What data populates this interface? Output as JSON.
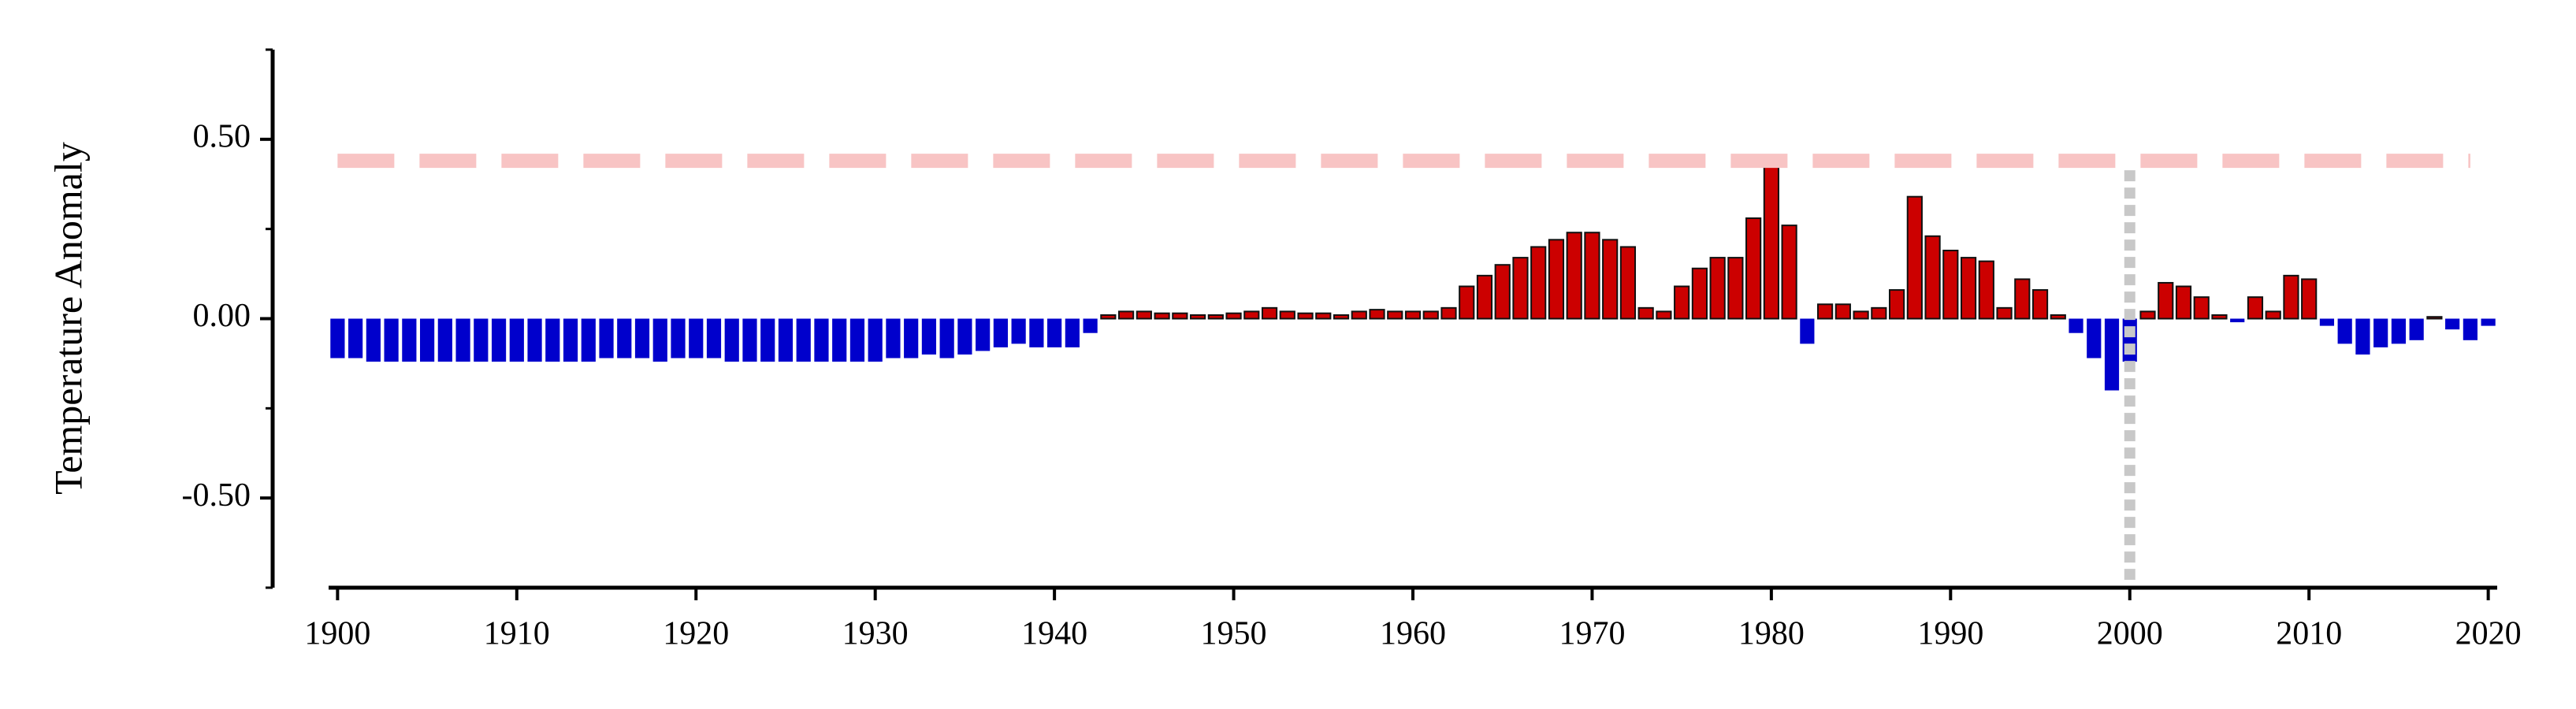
{
  "chart_data": {
    "type": "bar",
    "ylabel": "Temperature Anomaly",
    "x": [
      1900,
      1901,
      1902,
      1903,
      1904,
      1905,
      1906,
      1907,
      1908,
      1909,
      1910,
      1911,
      1912,
      1913,
      1914,
      1915,
      1916,
      1917,
      1918,
      1919,
      1920,
      1921,
      1922,
      1923,
      1924,
      1925,
      1926,
      1927,
      1928,
      1929,
      1930,
      1931,
      1932,
      1933,
      1934,
      1935,
      1936,
      1937,
      1938,
      1939,
      1940,
      1941,
      1942,
      1943,
      1944,
      1945,
      1946,
      1947,
      1948,
      1949,
      1950,
      1951,
      1952,
      1953,
      1954,
      1955,
      1956,
      1957,
      1958,
      1959,
      1960,
      1961,
      1962,
      1963,
      1964,
      1965,
      1966,
      1967,
      1968,
      1969,
      1970,
      1971,
      1972,
      1973,
      1974,
      1975,
      1976,
      1977,
      1978,
      1979,
      1980,
      1981,
      1982,
      1983,
      1984,
      1985,
      1986,
      1987,
      1988,
      1989,
      1990,
      1991,
      1992,
      1993,
      1994,
      1995,
      1996,
      1997,
      1998,
      1999,
      2000,
      2001,
      2002,
      2003,
      2004,
      2005,
      2006,
      2007,
      2008,
      2009,
      2010,
      2011,
      2012,
      2013,
      2014,
      2015,
      2016,
      2017,
      2018,
      2019,
      2020
    ],
    "values": [
      -0.11,
      -0.11,
      -0.12,
      -0.12,
      -0.12,
      -0.12,
      -0.12,
      -0.12,
      -0.12,
      -0.12,
      -0.12,
      -0.12,
      -0.12,
      -0.12,
      -0.12,
      -0.11,
      -0.11,
      -0.11,
      -0.12,
      -0.11,
      -0.11,
      -0.11,
      -0.12,
      -0.12,
      -0.12,
      -0.12,
      -0.12,
      -0.12,
      -0.12,
      -0.12,
      -0.12,
      -0.11,
      -0.11,
      -0.1,
      -0.11,
      -0.1,
      -0.09,
      -0.08,
      -0.07,
      -0.08,
      -0.08,
      -0.08,
      -0.04,
      0.01,
      0.02,
      0.02,
      0.015,
      0.015,
      0.01,
      0.01,
      0.015,
      0.02,
      0.03,
      0.02,
      0.015,
      0.015,
      0.01,
      0.02,
      0.025,
      0.02,
      0.02,
      0.02,
      0.03,
      0.09,
      0.12,
      0.15,
      0.17,
      0.2,
      0.22,
      0.24,
      0.24,
      0.22,
      0.2,
      0.03,
      0.02,
      0.09,
      0.14,
      0.17,
      0.17,
      0.28,
      0.45,
      0.26,
      -0.07,
      0.04,
      0.04,
      0.02,
      0.03,
      0.08,
      0.34,
      0.23,
      0.19,
      0.17,
      0.16,
      0.03,
      0.11,
      0.08,
      0.01,
      -0.04,
      -0.11,
      -0.2,
      -0.12,
      0.02,
      0.1,
      0.09,
      0.06,
      0.01,
      -0.01,
      0.06,
      0.02,
      0.12,
      0.11,
      -0.02,
      -0.07,
      -0.1,
      -0.08,
      -0.07,
      -0.06,
      0.005,
      -0.03,
      -0.06,
      -0.02
    ],
    "positive_color": "#cc0000",
    "negative_color": "#0000cc",
    "xlim": [
      1899.5,
      2020.5
    ],
    "xticks": [
      1900,
      1910,
      1920,
      1930,
      1940,
      1950,
      1960,
      1970,
      1980,
      1990,
      2000,
      2010,
      2020
    ],
    "ylim": [
      -0.75,
      0.75
    ],
    "yticks": [
      {
        "value": 0.5,
        "label": "0.50"
      },
      {
        "value": 0,
        "label": "0.00"
      },
      {
        "value": -0.5,
        "label": "-0.50"
      }
    ],
    "yminorticks": [
      -0.75,
      -0.25,
      0.25,
      0.75
    ],
    "hline": 0.44,
    "hline_color": "#f8c4c4",
    "vline": 2000,
    "vline_color": "#c8c8c8"
  }
}
